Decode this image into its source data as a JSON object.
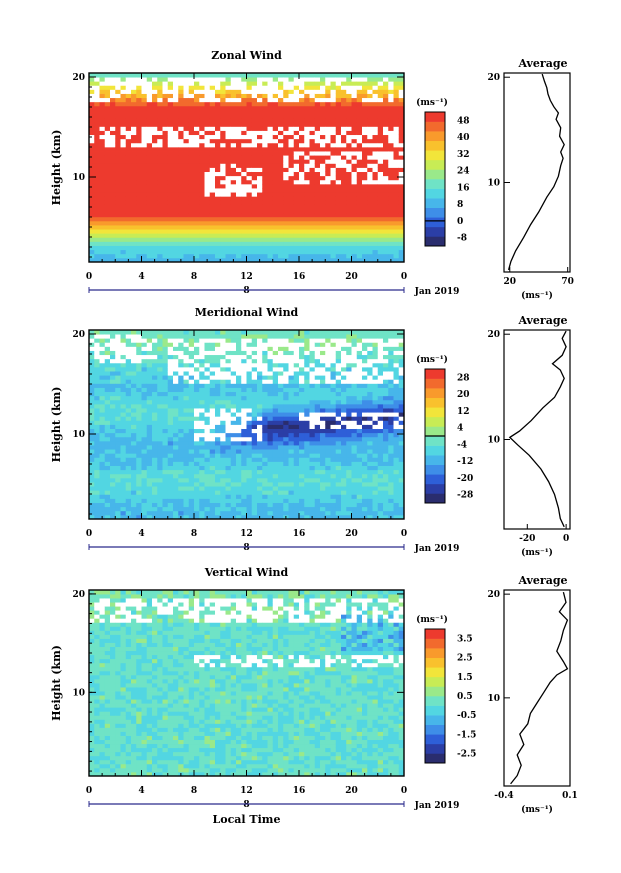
{
  "figure": {
    "xlabel": "Local Time",
    "date_label": "Jan 2019",
    "day_label": "8"
  },
  "chart_data": [
    {
      "type": "heatmap",
      "title": "Zonal Wind",
      "ylabel": "Height (km)",
      "x_ticks": [
        "0",
        "4",
        "8",
        "12",
        "16",
        "20",
        "0"
      ],
      "xlim": [
        0,
        24
      ],
      "y_ticks": [
        "10",
        "20"
      ],
      "ylim": [
        1.5,
        20.4
      ],
      "unit": "(ms⁻¹)",
      "colorbar": {
        "ticks": [
          "-8",
          "0",
          "8",
          "16",
          "24",
          "32",
          "40",
          "48"
        ],
        "range": [
          -12,
          52
        ],
        "zero_line": 0
      },
      "profile": {
        "title": "Average",
        "xlabel": "(ms⁻¹)",
        "x_ticks": [
          "20",
          "70"
        ],
        "xlim": [
          15,
          72
        ],
        "y_ticks": [
          "10",
          "20"
        ],
        "points": [
          [
            19,
            1.7
          ],
          [
            21,
            2.5
          ],
          [
            25,
            3.5
          ],
          [
            32,
            4.8
          ],
          [
            38,
            6.0
          ],
          [
            45,
            7.2
          ],
          [
            52,
            8.6
          ],
          [
            58,
            9.6
          ],
          [
            62,
            10.6
          ],
          [
            64,
            11.6
          ],
          [
            66,
            12.3
          ],
          [
            64,
            12.9
          ],
          [
            67,
            13.6
          ],
          [
            63,
            14.4
          ],
          [
            64,
            15.2
          ],
          [
            60,
            16.0
          ],
          [
            62,
            16.6
          ],
          [
            58,
            17.2
          ],
          [
            55,
            17.8
          ],
          [
            53,
            18.4
          ],
          [
            52,
            19.0
          ],
          [
            50,
            19.6
          ],
          [
            48,
            20.3
          ]
        ]
      }
    },
    {
      "type": "heatmap",
      "title": "Meridional Wind",
      "ylabel": "Height (km)",
      "x_ticks": [
        "0",
        "4",
        "8",
        "12",
        "16",
        "20",
        "0"
      ],
      "xlim": [
        0,
        24
      ],
      "y_ticks": [
        "10",
        "20"
      ],
      "ylim": [
        1.5,
        20.4
      ],
      "unit": "(ms⁻¹)",
      "colorbar": {
        "ticks": [
          "-28",
          "-20",
          "-12",
          "-4",
          "4",
          "12",
          "20",
          "28"
        ],
        "range": [
          -32,
          32
        ],
        "zero_line": 0
      },
      "profile": {
        "title": "Average",
        "xlabel": "(ms⁻¹)",
        "x_ticks": [
          "-20",
          "0"
        ],
        "xlim": [
          -32,
          2
        ],
        "y_ticks": [
          "10",
          "20"
        ],
        "points": [
          [
            -1,
            1.7
          ],
          [
            -3,
            2.5
          ],
          [
            -4,
            3.5
          ],
          [
            -6,
            4.8
          ],
          [
            -9,
            6.0
          ],
          [
            -13,
            7.2
          ],
          [
            -19,
            8.5
          ],
          [
            -25,
            9.5
          ],
          [
            -29,
            10.2
          ],
          [
            -24,
            10.8
          ],
          [
            -18,
            11.8
          ],
          [
            -12,
            13.0
          ],
          [
            -6,
            14.0
          ],
          [
            -3,
            15.0
          ],
          [
            -1,
            15.8
          ],
          [
            -3,
            16.6
          ],
          [
            -7,
            17.2
          ],
          [
            -2,
            18.0
          ],
          [
            0,
            18.8
          ],
          [
            -2,
            19.6
          ],
          [
            0,
            20.3
          ]
        ]
      }
    },
    {
      "type": "heatmap",
      "title": "Vertical Wind",
      "ylabel": "Height (km)",
      "x_ticks": [
        "0",
        "4",
        "8",
        "12",
        "16",
        "20",
        "0"
      ],
      "xlim": [
        0,
        24
      ],
      "y_ticks": [
        "10",
        "20"
      ],
      "ylim": [
        1.5,
        20.4
      ],
      "unit": "(ms⁻¹)",
      "colorbar": {
        "ticks": [
          "-2.5",
          "-1.5",
          "-0.5",
          "0.5",
          "1.5",
          "2.5",
          "3.5"
        ],
        "range": [
          -3.0,
          4.0
        ],
        "zero_line": null
      },
      "profile": {
        "title": "Average",
        "xlabel": "(ms⁻¹)",
        "x_ticks": [
          "-0.4",
          "0.1"
        ],
        "xlim": [
          -0.4,
          0.1
        ],
        "y_ticks": [
          "10",
          "20"
        ],
        "points": [
          [
            -0.35,
            1.7
          ],
          [
            -0.3,
            2.5
          ],
          [
            -0.27,
            3.5
          ],
          [
            -0.3,
            4.5
          ],
          [
            -0.25,
            5.5
          ],
          [
            -0.28,
            6.5
          ],
          [
            -0.22,
            7.5
          ],
          [
            -0.2,
            8.5
          ],
          [
            -0.15,
            9.5
          ],
          [
            -0.1,
            10.5
          ],
          [
            -0.05,
            11.5
          ],
          [
            0.0,
            12.2
          ],
          [
            0.08,
            12.8
          ],
          [
            0.05,
            13.5
          ],
          [
            0.0,
            14.5
          ],
          [
            0.03,
            15.5
          ],
          [
            0.05,
            16.5
          ],
          [
            0.08,
            17.5
          ],
          [
            0.02,
            18.3
          ],
          [
            0.07,
            19.2
          ],
          [
            0.05,
            20.2
          ]
        ]
      }
    }
  ]
}
